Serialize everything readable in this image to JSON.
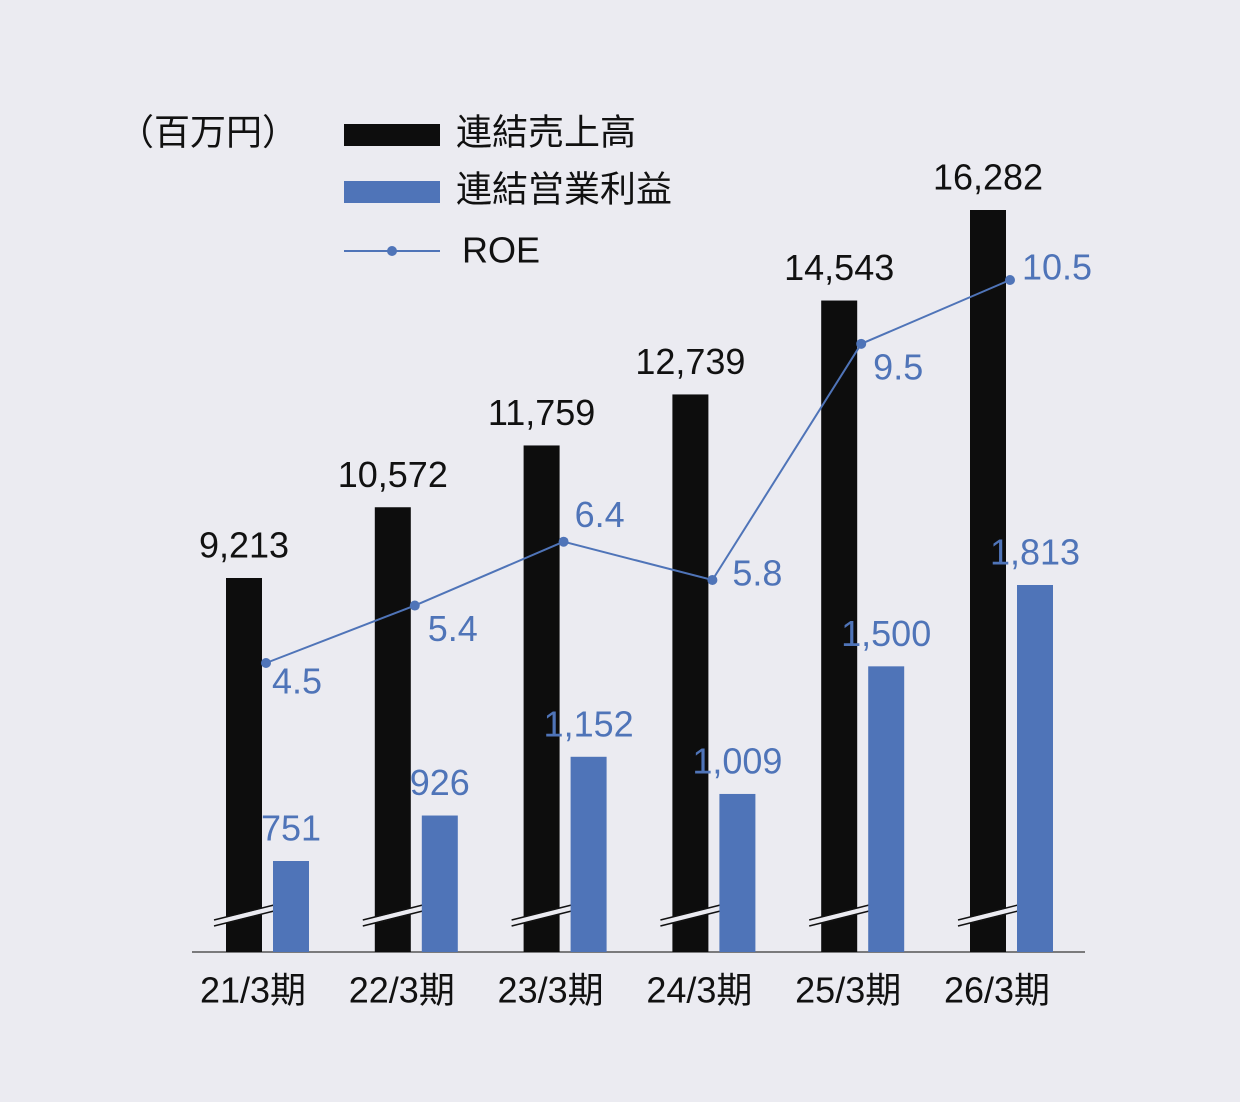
{
  "chart_data": {
    "type": "combo",
    "unit_label": "（百万円）",
    "categories": [
      "21/3期",
      "22/3期",
      "23/3期",
      "24/3期",
      "25/3期",
      "26/3期"
    ],
    "series": [
      {
        "name": "連結売上高",
        "type": "bar",
        "color": "#0d0d0d",
        "values": [
          9213,
          10572,
          11759,
          12739,
          14543,
          16282
        ],
        "value_labels": [
          "9,213",
          "10,572",
          "11,759",
          "12,739",
          "14,543",
          "16,282"
        ]
      },
      {
        "name": "連結営業利益",
        "type": "bar",
        "color": "#4f74b8",
        "values": [
          751,
          926,
          1152,
          1009,
          1500,
          1813
        ],
        "value_labels": [
          "751",
          "926",
          "1,152",
          "1,009",
          "1,500",
          "1,813"
        ]
      },
      {
        "name": "ROE",
        "type": "line",
        "color": "#4f74b8",
        "values": [
          4.5,
          5.4,
          6.4,
          5.8,
          9.5,
          10.5
        ]
      }
    ]
  }
}
